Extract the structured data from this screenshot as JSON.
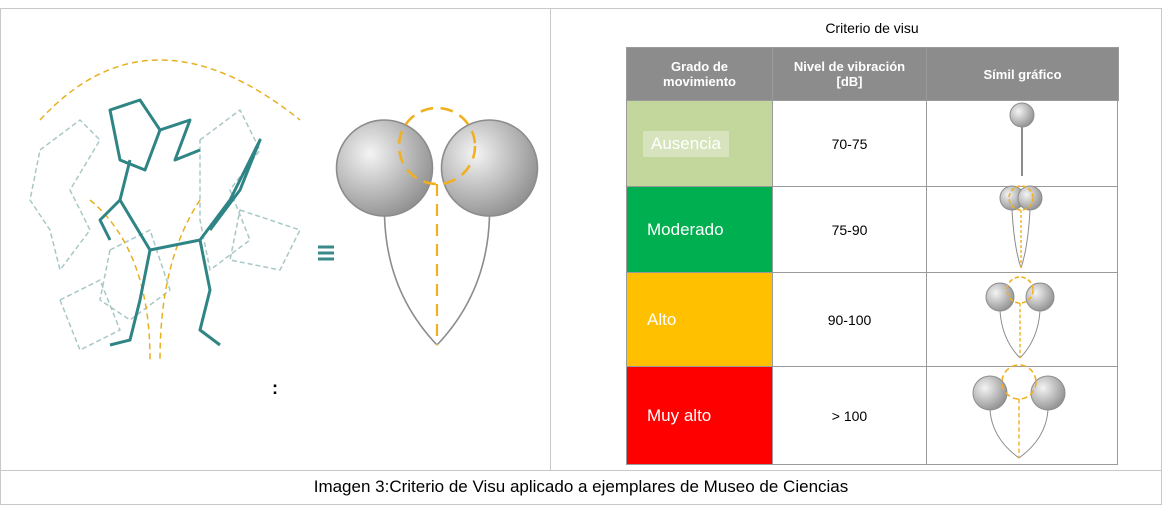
{
  "criteria_title": "Criterio de visu",
  "left_label": ":",
  "table": {
    "headers": [
      "Grado de movimiento",
      "Nivel de vibración [dB]",
      "Símil gráfico"
    ],
    "rows": [
      [
        "Ausencia",
        "70-75"
      ],
      [
        "Moderado",
        "75-90"
      ],
      [
        "Alto",
        "90-100"
      ],
      [
        "Muy alto",
        "> 100"
      ]
    ]
  },
  "caption": "Imagen 3:Criterio de Visu aplicado a ejemplares de Museo de Ciencias"
}
